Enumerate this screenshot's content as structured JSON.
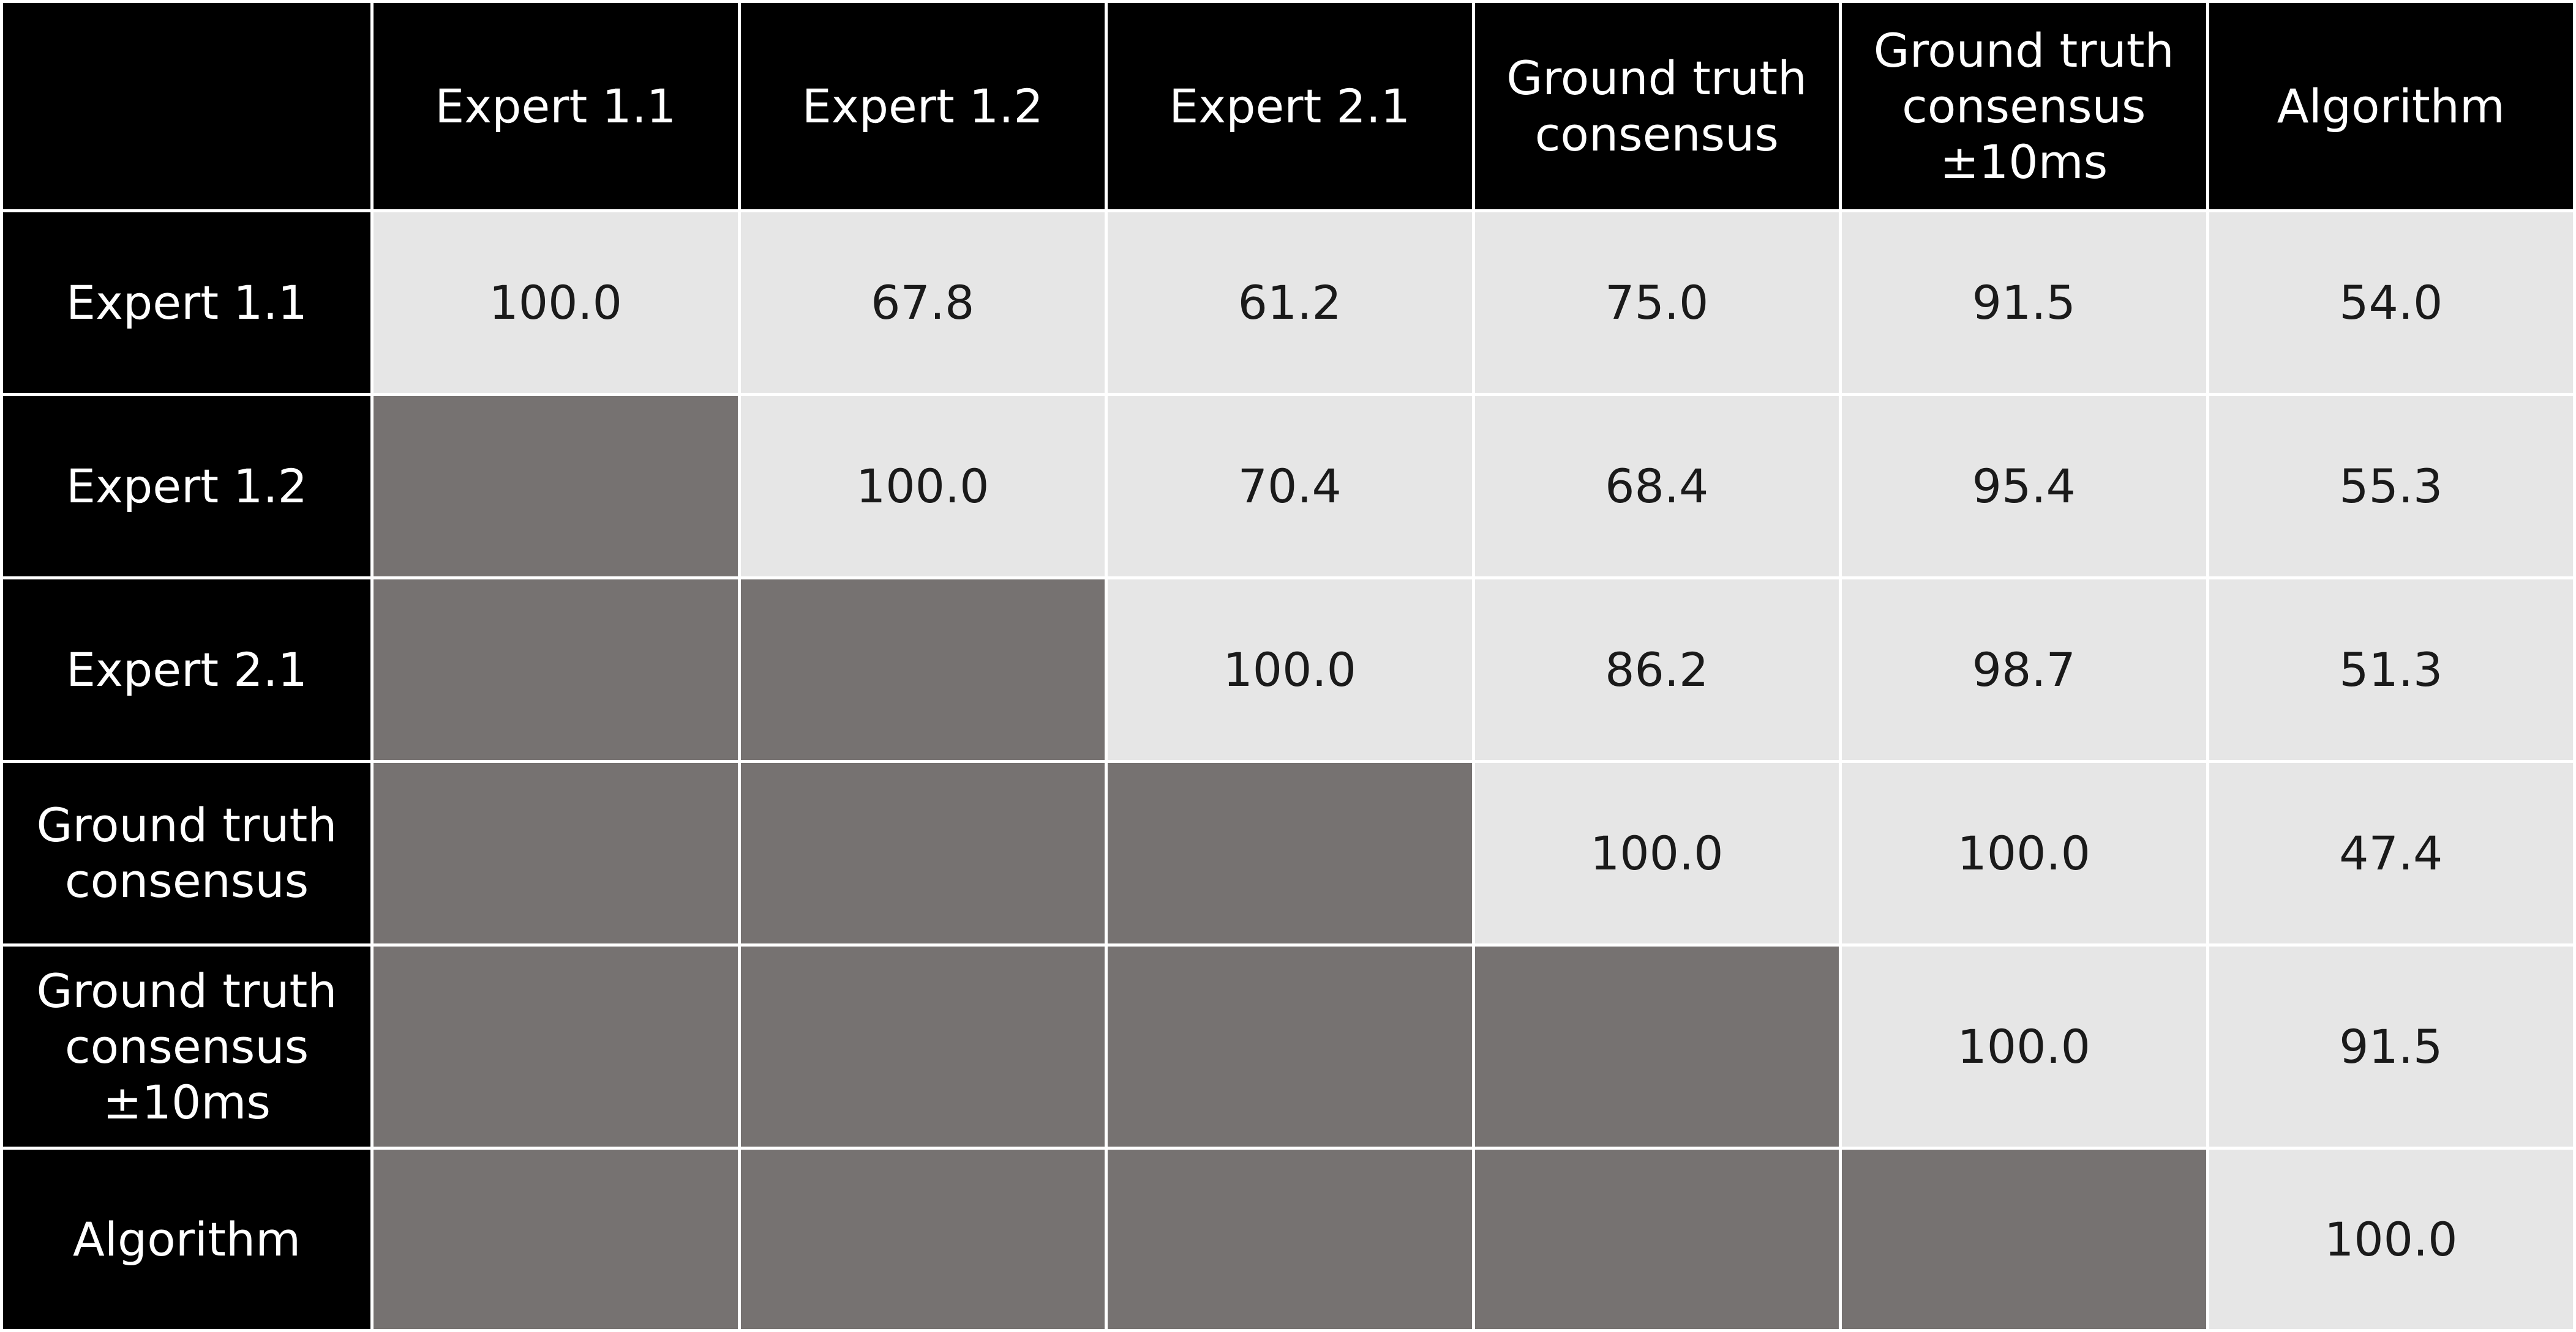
{
  "table": {
    "columns": [
      "Expert 1.1",
      "Expert 1.2",
      "Expert 2.1",
      "Ground truth\nconsensus",
      "Ground truth\nconsensus\n±10ms",
      "Algorithm"
    ],
    "rows": [
      {
        "label": "Expert 1.1",
        "values": [
          "100.0",
          "67.8",
          "61.2",
          "75.0",
          "91.5",
          "54.0"
        ]
      },
      {
        "label": "Expert 1.2",
        "values": [
          "100.0",
          "70.4",
          "68.4",
          "95.4",
          "55.3"
        ]
      },
      {
        "label": "Expert 2.1",
        "values": [
          "100.0",
          "86.2",
          "98.7",
          "51.3"
        ]
      },
      {
        "label": "Ground truth\nconsensus",
        "values": [
          "100.0",
          "100.0",
          "47.4"
        ]
      },
      {
        "label": "Ground truth\nconsensus\n±10ms",
        "values": [
          "100.0",
          "91.5"
        ]
      },
      {
        "label": "Algorithm",
        "values": [
          "100.0"
        ]
      }
    ]
  }
}
